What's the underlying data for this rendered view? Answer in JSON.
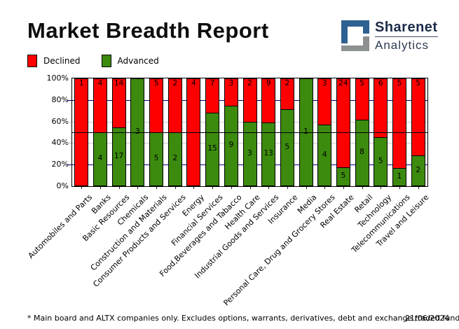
{
  "header": {
    "title": "Market Breadth Report",
    "brand": {
      "name": "Sharenet",
      "sub": "Analytics",
      "logo_blue": "#2E6091",
      "logo_gray": "#8C9091"
    }
  },
  "legend": {
    "items": [
      {
        "label": "Declined",
        "color": "#FF0000"
      },
      {
        "label": "Advanced",
        "color": "#3C8A0E"
      }
    ]
  },
  "chart_data": {
    "type": "bar",
    "stacked": true,
    "units": "percent of companies (100% stacked), segment labels show counts",
    "categories": [
      "Automobiles and Parts",
      "Banks",
      "Basic Resources",
      "Chemicals",
      "Construction and Materials",
      "Consumer Products and Services",
      "Energy",
      "Financial Services",
      "Food,Beverages and Tabacco",
      "Health Care",
      "Industrial Goods and Services",
      "Insurance",
      "Media",
      "Personal Care, Drug and Grocery Stores",
      "Real Estate",
      "Retail",
      "Technology",
      "Telecommunications",
      "Travel and Leisure"
    ],
    "series": [
      {
        "name": "Declined",
        "color": "#FF0000",
        "values": [
          1,
          4,
          14,
          0,
          5,
          2,
          4,
          7,
          3,
          2,
          9,
          2,
          0,
          3,
          24,
          5,
          6,
          5,
          5
        ]
      },
      {
        "name": "Advanced",
        "color": "#3C8A0E",
        "values": [
          0,
          4,
          17,
          3,
          5,
          2,
          0,
          15,
          9,
          3,
          13,
          5,
          1,
          4,
          5,
          8,
          5,
          1,
          2
        ]
      }
    ],
    "ylim": [
      0,
      100
    ],
    "y_ticks": [
      "100%",
      "80%",
      "60%",
      "40%",
      "20%",
      "0%"
    ],
    "y_tick_values": [
      100,
      80,
      60,
      40,
      20,
      0
    ],
    "gridlines": {
      "major_values": [
        80,
        20
      ],
      "major_color": "#000080",
      "minor_values": [
        60,
        40
      ],
      "minor_color": "#C8C8C8",
      "midline_value": 50,
      "midline_color": "#000000"
    },
    "legend_position": "top-left",
    "bar_border_color": "#000000"
  },
  "footer": {
    "note": "* Main board and ALTX companies only. Excludes options, warrants, derivatives, debt and exchange traded funds",
    "date": "21/06/2024"
  }
}
